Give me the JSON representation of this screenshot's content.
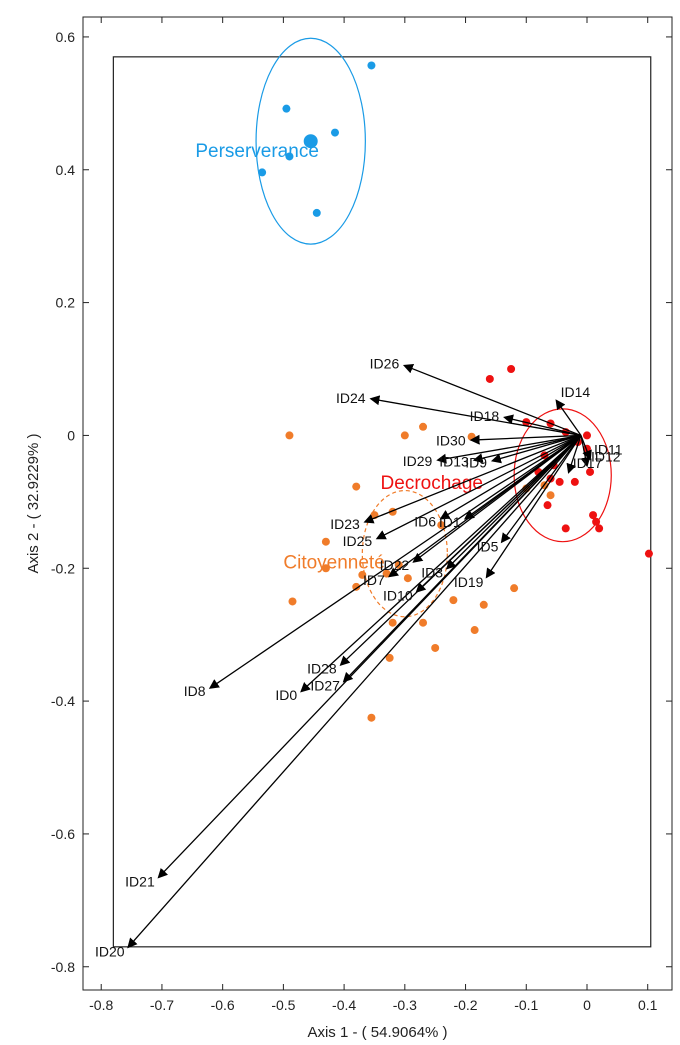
{
  "chart_data": {
    "type": "scatter",
    "xlabel": "Axis 1 - ( 54.9064% )",
    "ylabel": "Axis 2 - ( 32.9229% )",
    "xlim": [
      -0.83,
      0.14
    ],
    "ylim": [
      -0.835,
      0.63
    ],
    "xticks": [
      -0.8,
      -0.7,
      -0.6,
      -0.5,
      -0.4,
      -0.3,
      -0.2,
      -0.1,
      0,
      0.1
    ],
    "yticks": [
      -0.8,
      -0.6,
      -0.4,
      -0.2,
      0,
      0.2,
      0.4,
      0.6
    ],
    "xtick_labels": [
      "-0.8",
      "-0.7",
      "-0.6",
      "-0.5",
      "-0.4",
      "-0.3",
      "-0.2",
      "-0.1",
      "0",
      "0.1"
    ],
    "ytick_labels": [
      "-0.8",
      "-0.6",
      "-0.4",
      "-0.2",
      "0",
      "0.2",
      "0.4",
      "0.6"
    ],
    "inner_box": {
      "x": [
        -0.78,
        0.105
      ],
      "y": [
        -0.77,
        0.57
      ]
    },
    "arrow_origin": [
      -0.01,
      0.0
    ],
    "arrows": [
      {
        "label": "ID26",
        "x": -0.3,
        "y": 0.105
      },
      {
        "label": "ID24",
        "x": -0.355,
        "y": 0.055
      },
      {
        "label": "ID14",
        "x": -0.05,
        "y": 0.052
      },
      {
        "label": "ID18",
        "x": -0.135,
        "y": 0.027
      },
      {
        "label": "ID30",
        "x": -0.19,
        "y": -0.007
      },
      {
        "label": "ID29",
        "x": -0.245,
        "y": -0.037
      },
      {
        "label": "ID13",
        "x": -0.185,
        "y": -0.037
      },
      {
        "label": "ID9",
        "x": -0.155,
        "y": -0.038
      },
      {
        "label": "ID11",
        "x": 0.005,
        "y": -0.035
      },
      {
        "label": "ID12",
        "x": 0.0,
        "y": -0.045
      },
      {
        "label": "ID17",
        "x": -0.03,
        "y": -0.055
      },
      {
        "label": "ID23",
        "x": -0.365,
        "y": -0.13
      },
      {
        "label": "ID6",
        "x": -0.24,
        "y": -0.125
      },
      {
        "label": "ID1",
        "x": -0.2,
        "y": -0.125
      },
      {
        "label": "ID25",
        "x": -0.345,
        "y": -0.155
      },
      {
        "label": "ID5",
        "x": -0.14,
        "y": -0.16
      },
      {
        "label": "ID22",
        "x": -0.285,
        "y": -0.19
      },
      {
        "label": "ID7",
        "x": -0.325,
        "y": -0.212
      },
      {
        "label": "ID3",
        "x": -0.23,
        "y": -0.2
      },
      {
        "label": "ID19",
        "x": -0.165,
        "y": -0.213
      },
      {
        "label": "ID10",
        "x": -0.28,
        "y": -0.235
      },
      {
        "label": "ID28",
        "x": -0.405,
        "y": -0.345
      },
      {
        "label": "ID27",
        "x": -0.4,
        "y": -0.37
      },
      {
        "label": "ID0",
        "x": -0.47,
        "y": -0.385
      },
      {
        "label": "ID8",
        "x": -0.62,
        "y": -0.38
      },
      {
        "label": "ID21",
        "x": -0.705,
        "y": -0.665
      },
      {
        "label": "ID20",
        "x": -0.755,
        "y": -0.77
      }
    ],
    "groups": [
      {
        "name": "Perserverance",
        "color": "#1a9be6",
        "centroid": [
          -0.455,
          0.443
        ],
        "radius_x": 0.09,
        "radius_y": 0.155,
        "points": [
          [
            -0.355,
            0.557
          ],
          [
            -0.495,
            0.492
          ],
          [
            -0.415,
            0.456
          ],
          [
            -0.49,
            0.42
          ],
          [
            -0.535,
            0.396
          ],
          [
            -0.445,
            0.335
          ]
        ]
      },
      {
        "name": "Decrochage",
        "color": "#ee1111",
        "centroid": [
          -0.04,
          -0.06
        ],
        "radius_x": 0.08,
        "radius_y": 0.1,
        "points": [
          [
            -0.125,
            0.1
          ],
          [
            -0.16,
            0.085
          ],
          [
            -0.1,
            0.02
          ],
          [
            -0.06,
            0.018
          ],
          [
            -0.035,
            0.005
          ],
          [
            -0.015,
            -0.01
          ],
          [
            0.0,
            0.0
          ],
          [
            -0.07,
            -0.03
          ],
          [
            -0.055,
            -0.045
          ],
          [
            -0.08,
            -0.055
          ],
          [
            -0.06,
            -0.065
          ],
          [
            -0.045,
            -0.07
          ],
          [
            -0.02,
            -0.07
          ],
          [
            0.005,
            -0.055
          ],
          [
            0.0,
            -0.02
          ],
          [
            -0.065,
            -0.105
          ],
          [
            0.01,
            -0.12
          ],
          [
            0.015,
            -0.13
          ],
          [
            0.02,
            -0.14
          ],
          [
            -0.035,
            -0.14
          ],
          [
            0.102,
            -0.178
          ]
        ]
      },
      {
        "name": "Citoyenneté",
        "color": "#f07c2a",
        "centroid": [
          -0.3,
          -0.178
        ],
        "radius_x": 0.07,
        "radius_y": 0.095,
        "points": [
          [
            -0.49,
            0.0
          ],
          [
            -0.27,
            0.013
          ],
          [
            -0.3,
            0.0
          ],
          [
            -0.19,
            -0.002
          ],
          [
            -0.38,
            -0.077
          ],
          [
            -0.35,
            -0.12
          ],
          [
            -0.32,
            -0.115
          ],
          [
            -0.31,
            -0.195
          ],
          [
            -0.295,
            -0.215
          ],
          [
            -0.33,
            -0.208
          ],
          [
            -0.37,
            -0.21
          ],
          [
            -0.38,
            -0.228
          ],
          [
            -0.43,
            -0.2
          ],
          [
            -0.43,
            -0.16
          ],
          [
            -0.485,
            -0.25
          ],
          [
            -0.22,
            -0.248
          ],
          [
            -0.17,
            -0.255
          ],
          [
            -0.12,
            -0.23
          ],
          [
            -0.32,
            -0.282
          ],
          [
            -0.27,
            -0.282
          ],
          [
            -0.25,
            -0.32
          ],
          [
            -0.185,
            -0.293
          ],
          [
            -0.325,
            -0.335
          ],
          [
            -0.355,
            -0.425
          ],
          [
            -0.07,
            -0.075
          ],
          [
            -0.1,
            -0.08
          ],
          [
            -0.06,
            -0.09
          ],
          [
            -0.24,
            -0.135
          ]
        ]
      }
    ]
  }
}
